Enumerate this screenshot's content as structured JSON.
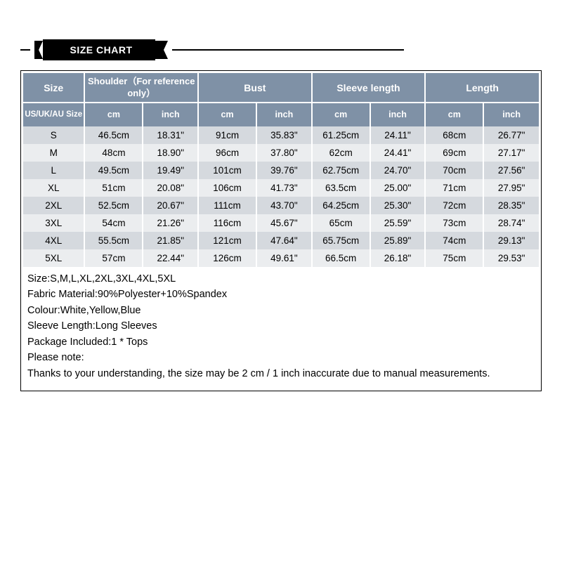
{
  "banner": {
    "label": "SIZE CHART"
  },
  "colors": {
    "header_bg": "#7f91a6",
    "row_odd": "#d5d9de",
    "row_even": "#ebedef",
    "border_gap": "#ffffff",
    "outer_border": "#000000",
    "text": "#000000",
    "header_text": "#ffffff"
  },
  "table": {
    "header_row1": {
      "size": "Size",
      "shoulder": "Shoulder（For reference only）",
      "bust": "Bust",
      "sleeve": "Sleeve length",
      "length": "Length"
    },
    "header_row2": {
      "size": "US/UK/AU Size",
      "cm": "cm",
      "inch": "inch"
    },
    "rows": [
      {
        "size": "S",
        "shoulder_cm": "46.5cm",
        "shoulder_in": "18.31\"",
        "bust_cm": "91cm",
        "bust_in": "35.83\"",
        "sleeve_cm": "61.25cm",
        "sleeve_in": "24.11\"",
        "length_cm": "68cm",
        "length_in": "26.77\""
      },
      {
        "size": "M",
        "shoulder_cm": "48cm",
        "shoulder_in": "18.90\"",
        "bust_cm": "96cm",
        "bust_in": "37.80\"",
        "sleeve_cm": "62cm",
        "sleeve_in": "24.41\"",
        "length_cm": "69cm",
        "length_in": "27.17\""
      },
      {
        "size": "L",
        "shoulder_cm": "49.5cm",
        "shoulder_in": "19.49\"",
        "bust_cm": "101cm",
        "bust_in": "39.76\"",
        "sleeve_cm": "62.75cm",
        "sleeve_in": "24.70\"",
        "length_cm": "70cm",
        "length_in": "27.56\""
      },
      {
        "size": "XL",
        "shoulder_cm": "51cm",
        "shoulder_in": "20.08\"",
        "bust_cm": "106cm",
        "bust_in": "41.73\"",
        "sleeve_cm": "63.5cm",
        "sleeve_in": "25.00\"",
        "length_cm": "71cm",
        "length_in": "27.95\""
      },
      {
        "size": "2XL",
        "shoulder_cm": "52.5cm",
        "shoulder_in": "20.67\"",
        "bust_cm": "111cm",
        "bust_in": "43.70\"",
        "sleeve_cm": "64.25cm",
        "sleeve_in": "25.30\"",
        "length_cm": "72cm",
        "length_in": "28.35\""
      },
      {
        "size": "3XL",
        "shoulder_cm": "54cm",
        "shoulder_in": "21.26\"",
        "bust_cm": "116cm",
        "bust_in": "45.67\"",
        "sleeve_cm": "65cm",
        "sleeve_in": "25.59\"",
        "length_cm": "73cm",
        "length_in": "28.74\""
      },
      {
        "size": "4XL",
        "shoulder_cm": "55.5cm",
        "shoulder_in": "21.85\"",
        "bust_cm": "121cm",
        "bust_in": "47.64\"",
        "sleeve_cm": "65.75cm",
        "sleeve_in": "25.89\"",
        "length_cm": "74cm",
        "length_in": "29.13\""
      },
      {
        "size": "5XL",
        "shoulder_cm": "57cm",
        "shoulder_in": "22.44\"",
        "bust_cm": "126cm",
        "bust_in": "49.61\"",
        "sleeve_cm": "66.5cm",
        "sleeve_in": "26.18\"",
        "length_cm": "75cm",
        "length_in": "29.53\""
      }
    ]
  },
  "notes": {
    "l1": "Size:S,M,L,XL,2XL,3XL,4XL,5XL",
    "l2": "Fabric Material:90%Polyester+10%Spandex",
    "l3": "Colour:White,Yellow,Blue",
    "l4": "Sleeve Length:Long Sleeves",
    "l5": "Package Included:1 * Tops",
    "l6": "Please note:",
    "l7": "Thanks to your understanding, the size may be 2 cm / 1 inch inaccurate due to manual measurements."
  }
}
